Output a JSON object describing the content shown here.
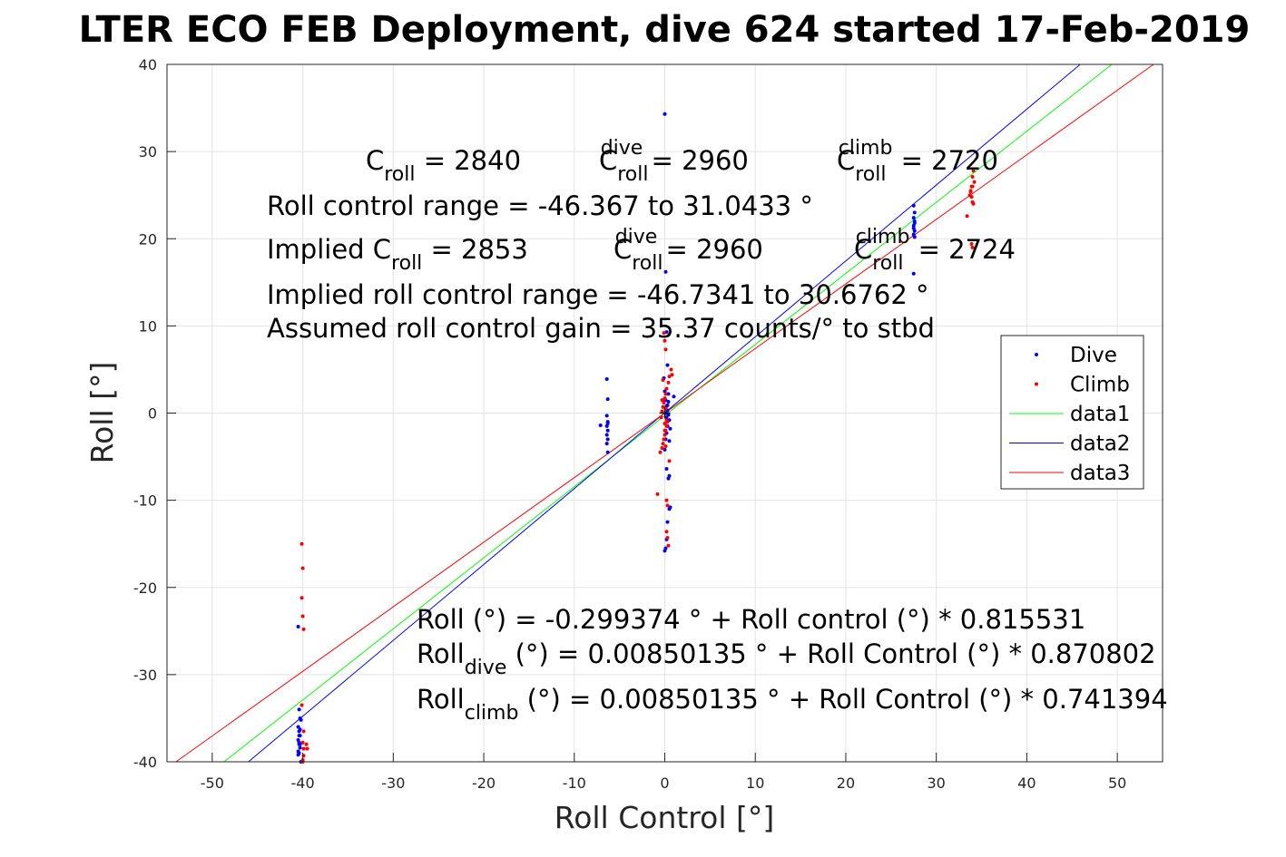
{
  "chart_data": {
    "type": "scatter",
    "title": "LTER ECO FEB Deployment, dive 624 started 17-Feb-2019",
    "xlabel": "Roll Control [°]",
    "ylabel": "Roll [°]",
    "xlim": [
      -55,
      55
    ],
    "ylim": [
      -40,
      40
    ],
    "xticks": [
      -50,
      -40,
      -30,
      -20,
      -10,
      0,
      10,
      20,
      30,
      40,
      50
    ],
    "yticks": [
      -40,
      -30,
      -20,
      -10,
      0,
      10,
      20,
      30,
      40
    ],
    "grid": true,
    "legend_position": "right",
    "colors": {
      "dive": "#0000ff",
      "climb": "#ff0000",
      "data1": "#00ff00",
      "data2": "#0000ff",
      "data3": "#ff0000"
    },
    "series": [
      {
        "name": "Dive",
        "kind": "points",
        "color": "#0000ff",
        "x": [
          -40.5,
          -40.4,
          -40.3,
          -40.5,
          -40.4,
          -40.3,
          -40.5,
          -40.4,
          -40.3,
          -40.5,
          -40.4,
          -40.3,
          -40.2,
          -40.4,
          -40.5,
          -40.2,
          -40.3,
          -40.4,
          -6.4,
          -6.3,
          -6.4,
          -6.3,
          -6.4,
          -6.3,
          -6.4,
          -6.3,
          -6.4,
          -6.3,
          -7.1,
          -6.3,
          0.0,
          0.1,
          0.2,
          0.3,
          -0.1,
          0.0,
          0.1,
          0.2,
          0.3,
          0.4,
          0.5,
          0.3,
          0.2,
          0.1,
          0.0,
          0.5,
          0.4,
          0.6,
          0.5,
          0.3,
          1.0,
          0.2,
          0.1,
          0.0,
          0.1,
          0.2,
          0.3,
          0.4,
          0.2,
          0.5,
          0.6,
          0.4,
          27.5,
          27.6,
          27.5,
          27.6,
          27.5,
          27.6,
          27.5,
          27.6,
          27.5,
          27.6,
          27.5
        ],
        "y": [
          -24.5,
          -34.0,
          -35.0,
          -36.0,
          -36.5,
          -37.0,
          -37.5,
          -38.0,
          -38.4,
          -38.8,
          -39.0,
          -36.3,
          -35.2,
          -37.8,
          -39.2,
          -40.0,
          -38.0,
          -37.0,
          3.9,
          1.6,
          -0.3,
          -1.0,
          -1.5,
          -2.0,
          -2.5,
          -3.0,
          -3.5,
          -4.5,
          -1.4,
          -1.2,
          34.3,
          16.2,
          9.3,
          5.5,
          4.0,
          2.5,
          1.5,
          0.8,
          0.3,
          -0.2,
          -0.8,
          -1.5,
          -2.3,
          -3.0,
          -4.2,
          -7.2,
          -7.5,
          -10.8,
          -11.0,
          -12.5,
          1.9,
          -14.5,
          -15.5,
          -15.8,
          0.0,
          -0.5,
          0.9,
          1.3,
          -6.4,
          -3.2,
          -1.8,
          2.2,
          23.8,
          23.0,
          22.4,
          21.8,
          21.2,
          20.9,
          20.5,
          20.2,
          16.0,
          22.0,
          21.5
        ]
      },
      {
        "name": "Climb",
        "kind": "points",
        "color": "#ff0000",
        "x": [
          -40.1,
          -40.0,
          -40.1,
          -40.0,
          -39.9,
          -40.1,
          -39.9,
          -40.0,
          -39.9,
          -39.5,
          -39.9,
          -40.0,
          -39.6,
          -40.0,
          -0.8,
          -0.5,
          -0.3,
          -0.2,
          -0.1,
          0.0,
          0.1,
          0.2,
          0.3,
          -0.4,
          -0.3,
          -0.2,
          -0.1,
          0.0,
          0.1,
          0.2,
          0.4,
          0.5,
          0.7,
          0.8,
          0.1,
          0.0,
          -0.1,
          -0.2,
          0.0,
          0.1,
          0.2,
          0.3,
          0.2,
          0.3,
          0.4,
          -0.3,
          0.0,
          0.1,
          0.2,
          0.5,
          33.4,
          33.7,
          33.8,
          33.9,
          34.0,
          34.1,
          33.9,
          34.0,
          34.1,
          34.2,
          33.9,
          34.0,
          33.8,
          34.0
        ],
        "y": [
          -15.0,
          -17.8,
          -21.2,
          -23.3,
          -24.8,
          -33.5,
          -36.5,
          -37.8,
          -38.5,
          -38.5,
          -39.3,
          -40.0,
          -38.0,
          -39.8,
          -9.3,
          -4.5,
          -4.0,
          -3.5,
          -3.0,
          -2.5,
          -2.0,
          -1.5,
          -1.0,
          -0.5,
          0.2,
          0.7,
          1.2,
          1.7,
          2.2,
          2.8,
          3.5,
          4.2,
          5.0,
          4.4,
          7.3,
          8.3,
          9.2,
          3.8,
          -2.0,
          -3.8,
          -10.0,
          -10.6,
          -13.6,
          -14.3,
          -15.2,
          1.5,
          -1.2,
          0.5,
          -0.8,
          -5.5,
          22.6,
          25.0,
          25.4,
          24.8,
          24.2,
          24.0,
          26.0,
          27.1,
          27.8,
          26.5,
          19.4,
          19.0,
          25.5,
          26.0
        ]
      },
      {
        "name": "data1",
        "kind": "line",
        "color": "#00ff00",
        "x": [
          -48.7,
          49.4
        ],
        "y": [
          -40.0,
          40.0
        ]
      },
      {
        "name": "data2",
        "kind": "line",
        "color": "#0000ff",
        "x": [
          -46.0,
          45.9
        ],
        "y": [
          -40.0,
          40.0
        ]
      },
      {
        "name": "data3",
        "kind": "line",
        "color": "#ff0000",
        "x": [
          -54.0,
          54.0
        ],
        "y": [
          -40.0,
          40.0
        ]
      }
    ],
    "origin_marker": {
      "x": 0,
      "y": 0,
      "symbol": "+"
    },
    "annotations": {
      "top": [
        {
          "id": "c1",
          "runs": [
            [
              "C",
              ""
            ],
            [
              "roll",
              "sub"
            ],
            [
              " = 2840",
              ""
            ]
          ]
        },
        {
          "id": "c2",
          "runs": [
            [
              "C",
              ""
            ],
            [
              "roll",
              "sub"
            ],
            [
              "dive",
              "sup"
            ],
            [
              " = 2960",
              ""
            ]
          ]
        },
        {
          "id": "c3",
          "runs": [
            [
              "C",
              ""
            ],
            [
              "roll",
              "sub"
            ],
            [
              "climb",
              "sup"
            ],
            [
              " = 2720",
              ""
            ]
          ]
        },
        {
          "id": "r1",
          "runs": [
            [
              "Roll control range = -46.367 to 31.0433 °",
              ""
            ]
          ]
        },
        {
          "id": "i1",
          "runs": [
            [
              "Implied C",
              ""
            ],
            [
              "roll",
              "sub"
            ],
            [
              " = 2853",
              ""
            ]
          ]
        },
        {
          "id": "i2",
          "runs": [
            [
              "C",
              ""
            ],
            [
              "roll",
              "sub"
            ],
            [
              "dive",
              "sup"
            ],
            [
              " = 2960",
              ""
            ]
          ]
        },
        {
          "id": "i3",
          "runs": [
            [
              "C",
              ""
            ],
            [
              "roll",
              "sub"
            ],
            [
              "climb",
              "sup"
            ],
            [
              " = 2724",
              ""
            ]
          ]
        },
        {
          "id": "r2",
          "runs": [
            [
              "Implied roll control range = -46.7341 to 30.6762 °",
              ""
            ]
          ]
        },
        {
          "id": "r3",
          "runs": [
            [
              "Assumed roll control gain = 35.37 counts/° to stbd",
              ""
            ]
          ]
        }
      ],
      "bottom": [
        {
          "id": "f1",
          "runs": [
            [
              "Roll (°) = -0.299374 ° + Roll control (°) * 0.815531",
              ""
            ]
          ]
        },
        {
          "id": "f2",
          "runs": [
            [
              "Roll",
              ""
            ],
            [
              "dive",
              "sub"
            ],
            [
              " (°) = 0.00850135 ° + Roll Control (°) * 0.870802",
              ""
            ]
          ]
        },
        {
          "id": "f3",
          "runs": [
            [
              "Roll",
              ""
            ],
            [
              "climb",
              "sub"
            ],
            [
              " (°) = 0.00850135 ° + Roll Control (°) * 0.741394",
              ""
            ]
          ]
        }
      ]
    }
  }
}
